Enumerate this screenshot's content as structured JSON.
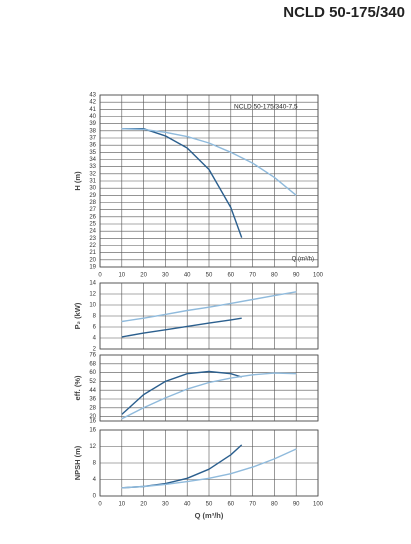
{
  "header": {
    "title": "NCLD 50-175/340"
  },
  "chart_data": [
    {
      "type": "line",
      "ylabel": "H (m)",
      "annotation": "NCLD 50-175/340-7,5",
      "xlabel": "Q (m³/h)",
      "xlim": [
        0,
        100
      ],
      "xticks": [
        0,
        10,
        20,
        30,
        40,
        50,
        60,
        70,
        80,
        90,
        100
      ],
      "ylim": [
        19,
        43
      ],
      "yticks": [
        19,
        20,
        21,
        22,
        23,
        24,
        25,
        26,
        27,
        28,
        29,
        30,
        31,
        32,
        33,
        34,
        35,
        36,
        37,
        38,
        39,
        40,
        41,
        42,
        43
      ],
      "grid": true,
      "series": [
        {
          "color": "#2b5f8e",
          "x": [
            10,
            20,
            30,
            40,
            50,
            60,
            65
          ],
          "values": [
            38.3,
            38.3,
            37.3,
            35.6,
            32.6,
            27.3,
            23.1
          ]
        },
        {
          "color": "#8fbadc",
          "x": [
            10,
            20,
            30,
            40,
            50,
            60,
            70,
            80,
            90
          ],
          "values": [
            38.3,
            38.2,
            37.8,
            37.2,
            36.3,
            35,
            33.5,
            31.5,
            29
          ]
        }
      ]
    },
    {
      "type": "line",
      "ylabel": "P₂ (kW)",
      "xlim": [
        0,
        100
      ],
      "ylim": [
        2,
        14
      ],
      "yticks": [
        2,
        4,
        6,
        8,
        10,
        12,
        14
      ],
      "grid": true,
      "series": [
        {
          "color": "#2b5f8e",
          "x": [
            10,
            20,
            30,
            40,
            50,
            60,
            65
          ],
          "values": [
            4.2,
            4.9,
            5.5,
            6.1,
            6.7,
            7.3,
            7.6
          ]
        },
        {
          "color": "#8fbadc",
          "x": [
            10,
            20,
            30,
            40,
            50,
            60,
            70,
            80,
            90
          ],
          "values": [
            7,
            7.6,
            8.3,
            9,
            9.6,
            10.3,
            11,
            11.7,
            12.4
          ]
        }
      ]
    },
    {
      "type": "line",
      "ylabel": "eff. (%)",
      "xlim": [
        0,
        100
      ],
      "ylim": [
        16,
        76
      ],
      "yticks": [
        16,
        20,
        28,
        36,
        44,
        52,
        60,
        68,
        76
      ],
      "grid": true,
      "series": [
        {
          "color": "#2b5f8e",
          "x": [
            10,
            20,
            30,
            40,
            50,
            60,
            65
          ],
          "values": [
            22,
            40,
            52,
            59,
            61,
            59,
            56
          ]
        },
        {
          "color": "#8fbadc",
          "x": [
            10,
            20,
            30,
            40,
            50,
            60,
            70,
            80,
            90
          ],
          "values": [
            18,
            28,
            37,
            45,
            51,
            55,
            58,
            59.5,
            59
          ]
        }
      ]
    },
    {
      "type": "line",
      "ylabel": "NPSH (m)",
      "xlabel": "Q (m³/h)",
      "xlim": [
        0,
        100
      ],
      "xticks": [
        0,
        10,
        20,
        30,
        40,
        50,
        60,
        70,
        80,
        90,
        100
      ],
      "ylim": [
        0,
        16
      ],
      "yticks": [
        0,
        4,
        8,
        12,
        16
      ],
      "grid": true,
      "series": [
        {
          "color": "#2b5f8e",
          "x": [
            10,
            20,
            30,
            40,
            50,
            60,
            65
          ],
          "values": [
            2,
            2.3,
            3,
            4.3,
            6.5,
            10,
            12.4
          ]
        },
        {
          "color": "#8fbadc",
          "x": [
            10,
            20,
            30,
            40,
            50,
            60,
            70,
            80,
            90
          ],
          "values": [
            2,
            2.3,
            2.8,
            3.5,
            4.3,
            5.4,
            7,
            9,
            11.4
          ]
        }
      ]
    }
  ]
}
